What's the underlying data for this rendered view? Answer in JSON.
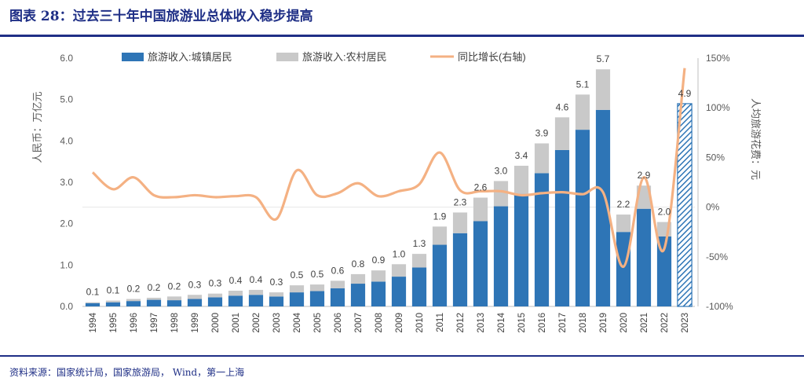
{
  "header": {
    "title": "图表 28：过去三十年中国旅游业总体收入稳步提高"
  },
  "footer": {
    "source": "资料来源：国家统计局，国家旅游局， Wind，第一上海"
  },
  "chart_data": {
    "type": "bar",
    "categories": [
      "1994",
      "1995",
      "1996",
      "1997",
      "1998",
      "1999",
      "2000",
      "2001",
      "2002",
      "2003",
      "2004",
      "2005",
      "2006",
      "2007",
      "2008",
      "2009",
      "2010",
      "2011",
      "2012",
      "2013",
      "2014",
      "2015",
      "2016",
      "2017",
      "2018",
      "2019",
      "2020",
      "2021",
      "2022",
      "2023"
    ],
    "series": [
      {
        "name": "旅游收入:城镇居民",
        "kind": "bar",
        "color": "#2e75b6",
        "values": [
          0.08,
          0.1,
          0.13,
          0.16,
          0.15,
          0.18,
          0.22,
          0.26,
          0.28,
          0.24,
          0.34,
          0.37,
          0.44,
          0.55,
          0.6,
          0.72,
          0.94,
          1.49,
          1.77,
          2.06,
          2.42,
          2.72,
          3.22,
          3.78,
          4.27,
          4.75,
          1.8,
          2.36,
          1.69,
          4.9
        ]
      },
      {
        "name": "旅游收入:农村居民",
        "kind": "bar",
        "color": "#c9c9c9",
        "values": [
          0.02,
          0.04,
          0.05,
          0.05,
          0.09,
          0.1,
          0.09,
          0.12,
          0.12,
          0.1,
          0.17,
          0.16,
          0.18,
          0.23,
          0.27,
          0.3,
          0.33,
          0.44,
          0.5,
          0.57,
          0.61,
          0.68,
          0.72,
          0.79,
          0.85,
          0.98,
          0.42,
          0.56,
          0.35,
          0
        ]
      },
      {
        "name": "同比增长(右轴)",
        "kind": "line",
        "axis": "right",
        "color": "#f4b183",
        "values": [
          35,
          18,
          30,
          12,
          10,
          12,
          10,
          11,
          10,
          -12,
          37,
          12,
          14,
          24,
          11,
          16,
          23,
          55,
          17,
          16,
          16,
          12,
          14,
          15,
          13,
          15,
          -60,
          30,
          -42,
          140
        ]
      }
    ],
    "totals": [
      "0.1",
      "0.1",
      "0.2",
      "0.2",
      "0.2",
      "0.3",
      "0.3",
      "0.4",
      "0.4",
      "0.3",
      "0.5",
      "0.5",
      "0.6",
      "0.8",
      "0.9",
      "1.0",
      "1.3",
      "1.9",
      "2.3",
      "2.6",
      "3.0",
      "3.4",
      "3.9",
      "4.6",
      "5.1",
      "5.7",
      "2.2",
      "2.9",
      "2.0",
      "4.9"
    ],
    "hatched_last_bar": true,
    "ylabel": "人民币：万亿元",
    "ylabel_right": "人均旅游花费：元",
    "ylim": [
      0,
      6
    ],
    "ylim_right": [
      -100,
      150
    ],
    "yticks": [
      "0.0",
      "1.0",
      "2.0",
      "3.0",
      "4.0",
      "5.0",
      "6.0"
    ],
    "yticks_right": [
      "-100%",
      "-50%",
      "0%",
      "50%",
      "100%",
      "150%"
    ],
    "legend_position": "top-left",
    "grid": false
  }
}
